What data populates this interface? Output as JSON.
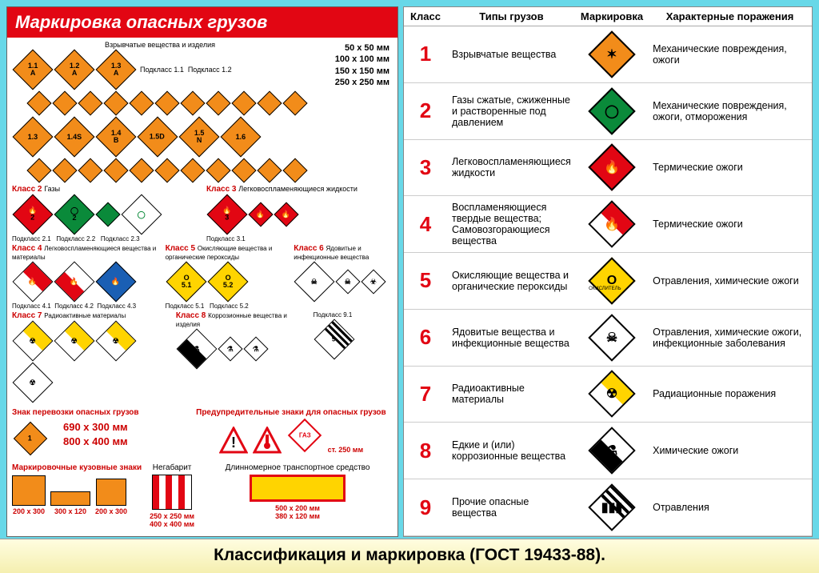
{
  "page": {
    "caption": "Классификация и маркировка (ГОСТ 19433-88).",
    "bg_color": "#68d8e8"
  },
  "left": {
    "title": "Маркировка опасных грузов",
    "explosives_header": "Взрывчатые вещества и изделия",
    "subclass_prefix": "Подкласс",
    "sizes_list": [
      "50 х 50 мм",
      "100 х 100 мм",
      "150 х 150 мм",
      "250 х 250 мм"
    ],
    "class2": "Газы",
    "class2_subs": [
      "Подкласс 2.1",
      "Подкласс 2.2",
      "Подкласс 2.3"
    ],
    "class3": "Легковоспламеняющиеся жидкости",
    "class3_sub": "Подкласс 3.1",
    "class4": "Легковоспламеняющиеся вещества и материалы",
    "class4_subs": [
      "Подкласс 4.1",
      "Подкласс 4.2",
      "Подкласс 4.3"
    ],
    "class5": "Окисляющие вещества и органические пероксиды",
    "class5_subs": [
      "Подкласс 5.1",
      "Подкласс 5.2"
    ],
    "class6": "Ядовитые и инфекционные вещества",
    "class7": "Радиоактивные материалы",
    "class8": "Коррозионные вещества и изделия",
    "class9_sub": "Подкласс 9.1",
    "transport_sign_title": "Знак перевозки опасных грузов",
    "transport_sizes": [
      "690 x 300 мм",
      "800 x 400 мм"
    ],
    "warning_title": "Предупредительные знаки для опасных грузов",
    "warning_note": "ст. 250 мм",
    "gaz_label": "ГАЗ",
    "body_signs_title": "Маркировочные кузовные знаки",
    "body_sizes": [
      "200 x 300",
      "300 x 120",
      "200 x 300"
    ],
    "negabarit": "Негабарит",
    "negabarit_sizes": [
      "250 x 250 мм",
      "400 x 400 мм"
    ],
    "long_vehicle": "Длинномерное транспортное средство",
    "long_sizes": [
      "500 x 200 мм",
      "380 x 120 мм"
    ],
    "diamond_colors": {
      "orange": "#f28c1a",
      "red": "#e20613",
      "green": "#0a8a3a",
      "yellow": "#ffd400",
      "blue": "#1a5fb4",
      "white": "#ffffff",
      "black": "#000000"
    },
    "explosive_labels": [
      "1.1",
      "1.2",
      "1.3",
      "1.4",
      "1.5",
      "1.6"
    ]
  },
  "right": {
    "headers": [
      "Класс",
      "Типы грузов",
      "Маркировка",
      "Характерные поражения"
    ],
    "rows": [
      {
        "n": "1",
        "type": "Взрывчатые вещества",
        "color": "#f28c1a",
        "sym": "✶",
        "harm": "Механические повреждения, ожоги"
      },
      {
        "n": "2",
        "type": "Газы сжатые, сжиженные и растворенные под давлением",
        "color": "#0a8a3a",
        "sym": "◯",
        "harm": "Механические повреждения, ожоги, отморожения"
      },
      {
        "n": "3",
        "type": "Легковоспламеняющиеся жидкости",
        "color": "#e20613",
        "sym": "🔥",
        "harm": "Термические ожоги"
      },
      {
        "n": "4",
        "type": "Воспламеняющиеся твердые вещества; Самовозгорающиеся вещества",
        "color": "#e20613",
        "sym": "🔥",
        "harm": "Термические ожоги",
        "half": "#ffffff"
      },
      {
        "n": "5",
        "type": "Окисляющие вещества и органические пероксиды",
        "color": "#ffd400",
        "sym": "O",
        "harm": "Отравления, химические ожоги",
        "note": "ОКИСЛИТЕЛЬ"
      },
      {
        "n": "6",
        "type": "Ядовитые вещества и инфекционные вещества",
        "color": "#ffffff",
        "sym": "☠",
        "harm": "Отравления, химические ожоги, инфекционные заболевания"
      },
      {
        "n": "7",
        "type": "Радиоактивные материалы",
        "color": "#ffd400",
        "sym": "☢",
        "harm": "Радиационные поражения",
        "half": "#ffffff"
      },
      {
        "n": "8",
        "type": "Едкие и (или) коррозионные вещества",
        "color": "#ffffff",
        "sym": "⚗",
        "harm": "Химические ожоги",
        "half": "#000000"
      },
      {
        "n": "9",
        "type": "Прочие опасные вещества",
        "color": "#ffffff",
        "sym": "▮▮▮",
        "harm": "Отравления",
        "stripes": true
      }
    ]
  }
}
